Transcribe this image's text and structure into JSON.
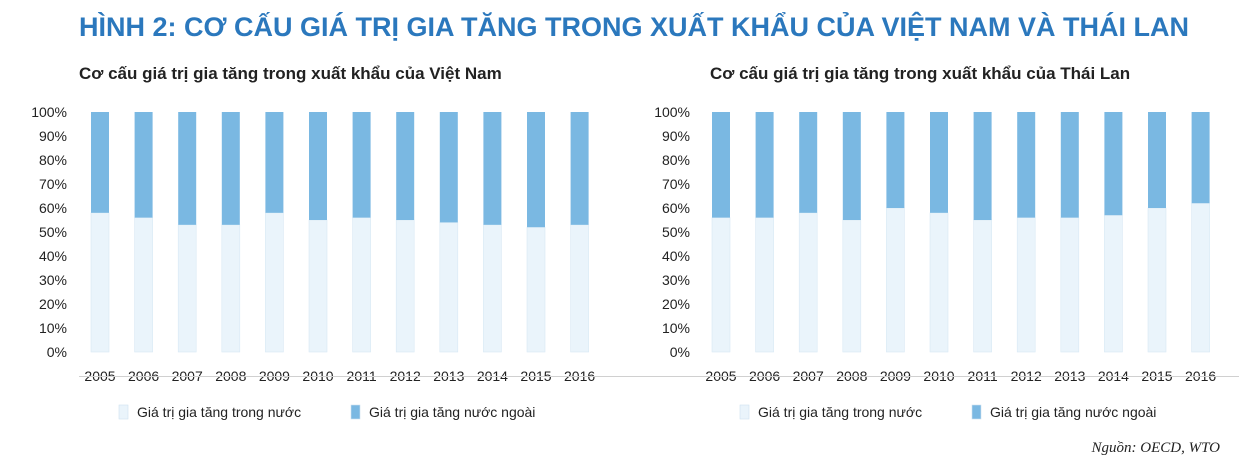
{
  "page": {
    "title": "HÌNH 2: CƠ CẤU GIÁ TRỊ GIA TĂNG TRONG XUẤT KHẨU CỦA VIỆT NAM VÀ THÁI LAN",
    "source": "Nguồn: OECD, WTO"
  },
  "colors": {
    "title": "#2b78bd",
    "domestic": "#eaf4fb",
    "foreign": "#7ab8e2"
  },
  "chart_data": [
    {
      "type": "bar",
      "stacked": true,
      "title": "Cơ cấu giá trị gia tăng trong xuất khẩu của Việt Nam",
      "categories": [
        "2005",
        "2006",
        "2007",
        "2008",
        "2009",
        "2010",
        "2011",
        "2012",
        "2013",
        "2014",
        "2015",
        "2016"
      ],
      "series": [
        {
          "name": "Giá trị gia tăng trong nước",
          "color": "#eaf4fb",
          "values": [
            58,
            56,
            53,
            53,
            58,
            55,
            56,
            55,
            54,
            53,
            52,
            53
          ]
        },
        {
          "name": "Giá trị gia tăng nước ngoài",
          "color": "#7ab8e2",
          "values": [
            42,
            44,
            47,
            47,
            42,
            45,
            44,
            45,
            46,
            47,
            48,
            47
          ]
        }
      ],
      "ylim": [
        0,
        100
      ],
      "yticks": [
        "0%",
        "10%",
        "20%",
        "30%",
        "40%",
        "50%",
        "60%",
        "70%",
        "80%",
        "90%",
        "100%"
      ],
      "legend": "bottom"
    },
    {
      "type": "bar",
      "stacked": true,
      "title": "Cơ cấu giá trị gia tăng trong xuất khẩu của Thái Lan",
      "categories": [
        "2005",
        "2006",
        "2007",
        "2008",
        "2009",
        "2010",
        "2011",
        "2012",
        "2013",
        "2014",
        "2015",
        "2016"
      ],
      "series": [
        {
          "name": "Giá trị gia tăng trong nước",
          "color": "#eaf4fb",
          "values": [
            56,
            56,
            58,
            55,
            60,
            58,
            55,
            56,
            56,
            57,
            60,
            62
          ]
        },
        {
          "name": "Giá trị gia tăng nước ngoài",
          "color": "#7ab8e2",
          "values": [
            44,
            44,
            42,
            45,
            40,
            42,
            45,
            44,
            44,
            43,
            40,
            38
          ]
        }
      ],
      "ylim": [
        0,
        100
      ],
      "yticks": [
        "0%",
        "10%",
        "20%",
        "30%",
        "40%",
        "50%",
        "60%",
        "70%",
        "80%",
        "90%",
        "100%"
      ],
      "legend": "bottom"
    }
  ]
}
